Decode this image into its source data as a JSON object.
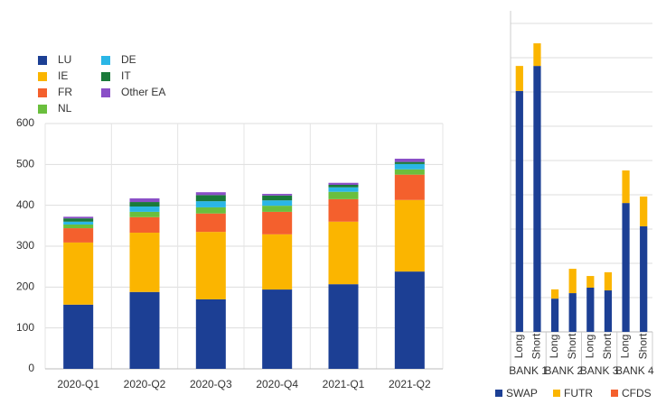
{
  "chart_data": [
    {
      "type": "stacked_bar",
      "categories": [
        "2020-Q1",
        "2020-Q2",
        "2020-Q3",
        "2020-Q4",
        "2021-Q1",
        "2021-Q2"
      ],
      "series": [
        {
          "name": "LU",
          "color": "#1c3f94",
          "values": [
            157,
            188,
            170,
            194,
            207,
            238
          ]
        },
        {
          "name": "IE",
          "color": "#fbb500",
          "values": [
            152,
            145,
            165,
            135,
            153,
            175
          ]
        },
        {
          "name": "FR",
          "color": "#f4602d",
          "values": [
            35,
            38,
            45,
            55,
            55,
            62
          ]
        },
        {
          "name": "NL",
          "color": "#6abf3d",
          "values": [
            9,
            13,
            15,
            15,
            18,
            13
          ]
        },
        {
          "name": "DE",
          "color": "#2ab6e6",
          "values": [
            7,
            13,
            15,
            13,
            11,
            13
          ]
        },
        {
          "name": "IT",
          "color": "#1a7a3a",
          "values": [
            8,
            11,
            15,
            12,
            6,
            5
          ]
        },
        {
          "name": "Other EA",
          "color": "#8a4fc7",
          "values": [
            4,
            9,
            7,
            4,
            5,
            8
          ]
        }
      ],
      "ylim": [
        0,
        600
      ],
      "yticks": [
        0,
        100,
        200,
        300,
        400,
        500,
        600
      ],
      "grid": true,
      "legend": "top-left"
    },
    {
      "type": "stacked_bar",
      "categories": [
        "Long",
        "Short",
        "Long",
        "Short",
        "Long",
        "Short",
        "Long",
        "Short"
      ],
      "groups": [
        "BANK 1",
        "BANK 2",
        "BANK 3",
        "BANK 4"
      ],
      "series": [
        {
          "name": "SWAP",
          "color": "#1c3f94",
          "values": [
            7.03,
            7.76,
            0.97,
            1.13,
            1.29,
            1.21,
            3.76,
            3.08
          ]
        },
        {
          "name": "FUTR",
          "color": "#fbb500",
          "values": [
            0.73,
            0.66,
            0.27,
            0.71,
            0.34,
            0.53,
            0.95,
            0.87
          ]
        },
        {
          "name": "CFDS",
          "color": "#f4602d",
          "values": [
            0,
            0,
            0,
            0,
            0,
            0,
            0,
            0
          ]
        }
      ],
      "ylim": [
        0,
        9
      ],
      "yticks": [
        0,
        1,
        2,
        3,
        4,
        5,
        6,
        7,
        8,
        9
      ],
      "ytick_labels": false,
      "grid": true,
      "legend": "bottom"
    }
  ]
}
